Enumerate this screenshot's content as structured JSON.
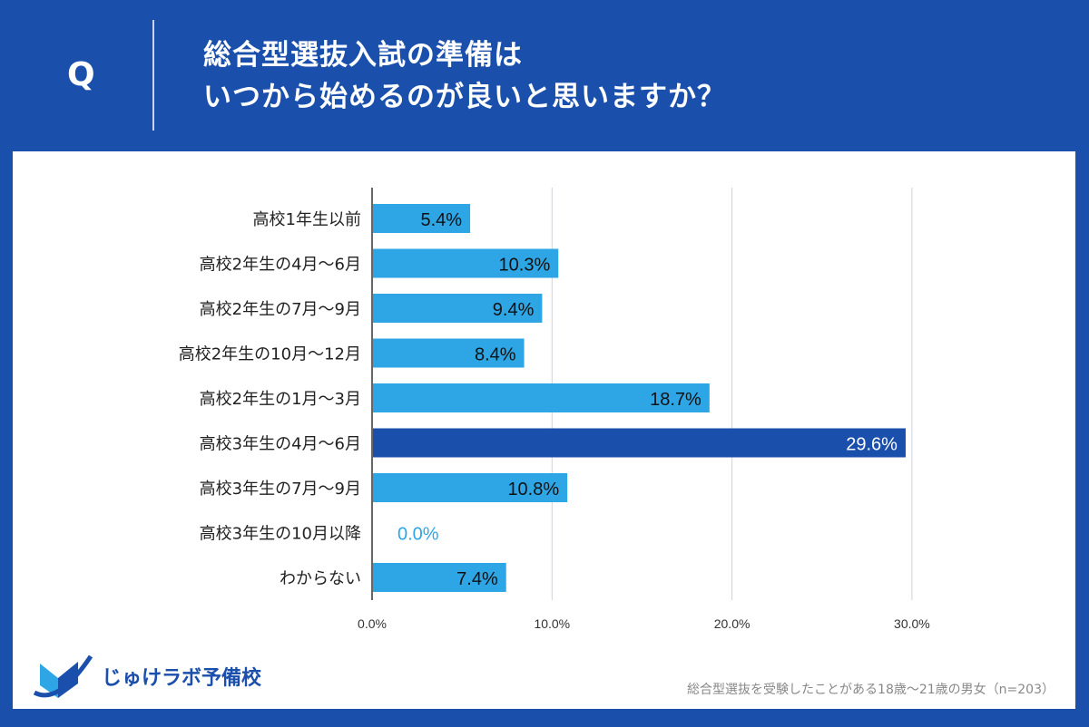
{
  "header": {
    "q_label": "Q",
    "title_line1": "総合型選抜入試の準備は",
    "title_line2": "いつから始めるのが良いと思いますか？"
  },
  "chart_data": {
    "type": "bar",
    "orientation": "horizontal",
    "categories": [
      "高校1年生以前",
      "高校2年生の4月～6月",
      "高校2年生の7月～9月",
      "高校2年生の10月～12月",
      "高校2年生の1月～3月",
      "高校3年生の4月～6月",
      "高校3年生の7月～9月",
      "高校3年生の10月以降",
      "わからない"
    ],
    "values": [
      5.4,
      10.3,
      9.4,
      8.4,
      18.7,
      29.6,
      10.8,
      0.0,
      7.4
    ],
    "data_labels": [
      "5.4%",
      "10.3%",
      "9.4%",
      "8.4%",
      "18.7%",
      "29.6%",
      "10.8%",
      "0.0%",
      "7.4%"
    ],
    "xticks": [
      "0.0%",
      "10.0%",
      "20.0%",
      "30.0%"
    ],
    "xlim": [
      0,
      35
    ],
    "grid": true,
    "colors": {
      "bar": "#2ea6e6",
      "highlight": "#1a4fac",
      "highlight_index": 5
    }
  },
  "footer": {
    "logo_text": "じゅけラボ予備校",
    "note": "総合型選抜を受験したことがある18歳～21歳の男女（n=203）"
  }
}
